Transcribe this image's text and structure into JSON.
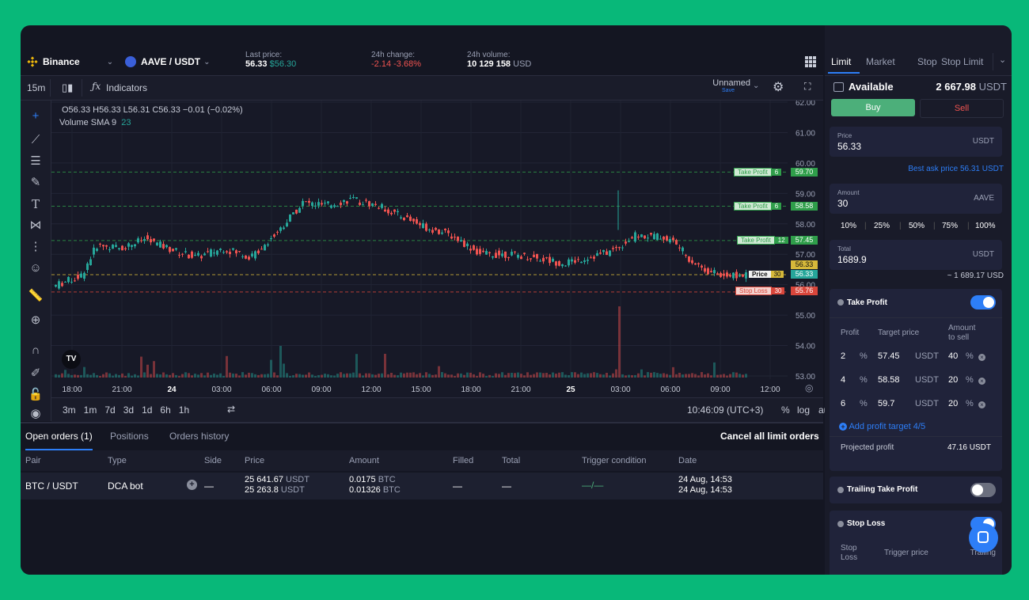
{
  "colors": {
    "up": "#26a69a",
    "down": "#ef5350",
    "accent": "#2d7ef7",
    "buy": "#4caf7a",
    "tp": "#2f9e4a",
    "sl": "#d9463b"
  },
  "header": {
    "exchange": "Binance",
    "pair": "AAVE / USDT",
    "last_price_label": "Last price:",
    "last_price": "56.33",
    "last_price_sub": "$56.30",
    "change_label": "24h change:",
    "change": "-2.14 -3.68%",
    "volume_label": "24h volume:",
    "volume": "10 129 158",
    "volume_unit": "USD"
  },
  "toolbar": {
    "interval": "15m",
    "indicators": "Indicators",
    "layout_name": "Unnamed",
    "layout_sub": "Save"
  },
  "legend": {
    "ohlc": "O56.33 H56.33 L56.31 C56.33 −0.01 (−0.02%)",
    "volume": "Volume SMA 9",
    "volume_val": "23"
  },
  "price_axis": [
    "62.00",
    "61.00",
    "60.00",
    "59.00",
    "58.00",
    "57.00",
    "56.00",
    "55.00",
    "54.00",
    "53.00"
  ],
  "time_axis": [
    "18:00",
    "21:00",
    "24",
    "03:00",
    "06:00",
    "09:00",
    "12:00",
    "15:00",
    "18:00",
    "21:00",
    "25",
    "03:00",
    "06:00",
    "09:00",
    "12:00"
  ],
  "lines": {
    "tp1": {
      "label": "Take Profit",
      "qty": "6",
      "price": "59.70"
    },
    "tp2": {
      "label": "Take Profit",
      "qty": "6",
      "price": "58.58"
    },
    "tp3": {
      "label": "Take Profit",
      "qty": "12",
      "price": "57.45"
    },
    "price": {
      "label": "Price",
      "qty": "30",
      "price": "56.33",
      "price2": "56.33"
    },
    "sl": {
      "label": "Stop Loss",
      "qty": "30",
      "price": "55.76"
    }
  },
  "timebar": {
    "ranges": [
      "3m",
      "1m",
      "7d",
      "3d",
      "1d",
      "6h",
      "1h"
    ],
    "clock": "10:46:09 (UTC+3)",
    "pct": "%",
    "log": "log",
    "auto": "auto"
  },
  "bottom": {
    "tabs": [
      "Open orders (1)",
      "Positions",
      "Orders history"
    ],
    "cancel_all": "Cancel all limit orders",
    "headers": [
      "Pair",
      "Type",
      "Side",
      "Price",
      "Amount",
      "Filled",
      "Total",
      "Trigger condition",
      "Date"
    ],
    "row": {
      "pair": "BTC / USDT",
      "type": "DCA bot",
      "side": "—",
      "price1": "25 641.67",
      "price2": "25 263.8",
      "price_unit": "USDT",
      "amount1": "0.0175",
      "amount2": "0.01326",
      "amount_unit": "BTC",
      "filled": "—",
      "total": "—",
      "trigger": "—/—",
      "date1": "24 Aug, 14:53",
      "date2": "24 Aug, 14:53"
    }
  },
  "panel": {
    "tabs": [
      "Limit",
      "Market",
      "Stop",
      "Stop Limit"
    ],
    "available_label": "Available",
    "available": "2 667.98",
    "available_unit": "USDT",
    "buy": "Buy",
    "sell": "Sell",
    "price_label": "Price",
    "price": "56.33",
    "price_unit": "USDT",
    "best_ask": "Best ask price 56.31 USDT",
    "amount_label": "Amount",
    "amount": "30",
    "amount_unit": "AAVE",
    "percents": [
      "10%",
      "25%",
      "50%",
      "75%",
      "100%"
    ],
    "total_label": "Total",
    "total": "1689.9",
    "total_unit": "USDT",
    "approx": "~ 1 689.17 USD",
    "take_profit": {
      "title": "Take Profit",
      "enabled": true,
      "col_profit": "Profit",
      "col_target": "Target price",
      "col_amount1": "Amount",
      "col_amount2": "to sell",
      "rows": [
        {
          "profit": "2",
          "target": "57.45",
          "unit": "USDT",
          "amount": "40"
        },
        {
          "profit": "4",
          "target": "58.58",
          "unit": "USDT",
          "amount": "20"
        },
        {
          "profit": "6",
          "target": "59.7",
          "unit": "USDT",
          "amount": "20"
        }
      ],
      "pct": "%",
      "add": "Add profit target 4/5",
      "projected_label": "Projected profit",
      "projected": "47.16 USDT"
    },
    "trailing": {
      "title": "Trailing Take Profit",
      "enabled": false
    },
    "stop_loss": {
      "title": "Stop Loss",
      "enabled": true,
      "col1": "Stop",
      "col1b": "Loss",
      "col2": "Trigger price",
      "col3": "Trailing"
    }
  }
}
